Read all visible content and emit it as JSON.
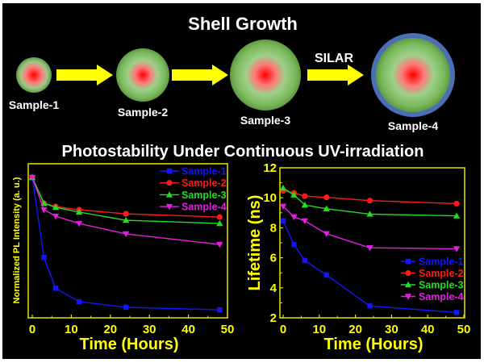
{
  "figure": {
    "title": "Shell Growth",
    "section_title": "Photostability Under Continuous UV-irradiation",
    "silar_label": "SILAR",
    "samples": [
      {
        "label": "Sample-1",
        "shell": "thin-green",
        "outer_coat": false
      },
      {
        "label": "Sample-2",
        "shell": "medium-green",
        "outer_coat": false
      },
      {
        "label": "Sample-3",
        "shell": "thick-green",
        "outer_coat": false
      },
      {
        "label": "Sample-4",
        "shell": "thick-green",
        "outer_coat": true
      }
    ],
    "colors": {
      "background": "#000000",
      "text": "#ffffff",
      "arrow": "#ffff00",
      "core": "#ff0000",
      "shell": "#6aa84f",
      "coat": "#4a6fb5",
      "axis": "#e6e600"
    }
  },
  "chart_data": [
    {
      "type": "line",
      "title": "",
      "xlabel": "Time (Hours)",
      "ylabel": "Normalized PL Intensity (a. u.)",
      "xlim": [
        0,
        50
      ],
      "ylim": [
        0,
        1.0
      ],
      "xticks": [
        0,
        10,
        20,
        30,
        40,
        50
      ],
      "yticks": [],
      "y_tick_labels_shown": false,
      "grid": false,
      "legend_position": "top-right",
      "x": [
        0,
        3,
        6,
        12,
        24,
        48
      ],
      "series": [
        {
          "name": "Sample-1",
          "color": "#1414ff",
          "marker": "square",
          "values": [
            1.0,
            0.43,
            0.21,
            0.115,
            0.075,
            0.057
          ]
        },
        {
          "name": "Sample-2",
          "color": "#ff1a1a",
          "marker": "circle",
          "values": [
            1.0,
            0.816,
            0.793,
            0.77,
            0.741,
            0.718
          ]
        },
        {
          "name": "Sample-3",
          "color": "#22dd22",
          "marker": "triangle-up",
          "values": [
            1.0,
            0.816,
            0.787,
            0.753,
            0.695,
            0.672
          ]
        },
        {
          "name": "Sample-4",
          "color": "#e020e0",
          "marker": "triangle-down",
          "values": [
            1.0,
            0.77,
            0.724,
            0.672,
            0.598,
            0.523
          ]
        }
      ]
    },
    {
      "type": "line",
      "title": "",
      "xlabel": "Time (Hours)",
      "ylabel": "Lifetime (ns)",
      "xlim": [
        0,
        50
      ],
      "ylim": [
        2,
        12
      ],
      "xticks": [
        0,
        10,
        20,
        30,
        40,
        50
      ],
      "yticks": [
        2,
        4,
        6,
        8,
        10,
        12
      ],
      "y_tick_labels_shown": true,
      "grid": false,
      "legend_position": "bottom-right",
      "x": [
        0,
        3,
        6,
        12,
        24,
        48
      ],
      "series": [
        {
          "name": "Sample-1",
          "color": "#1414ff",
          "marker": "square",
          "values": [
            8.46,
            6.88,
            5.82,
            4.85,
            2.79,
            2.36
          ]
        },
        {
          "name": "Sample-2",
          "color": "#ff1a1a",
          "marker": "circle",
          "values": [
            10.47,
            10.33,
            10.11,
            10.03,
            9.81,
            9.61
          ]
        },
        {
          "name": "Sample-3",
          "color": "#22dd22",
          "marker": "triangle-up",
          "values": [
            10.65,
            10.19,
            9.52,
            9.27,
            8.91,
            8.8
          ]
        },
        {
          "name": "Sample-4",
          "color": "#e020e0",
          "marker": "triangle-down",
          "values": [
            9.43,
            8.73,
            8.46,
            7.6,
            6.67,
            6.6
          ]
        }
      ]
    }
  ]
}
